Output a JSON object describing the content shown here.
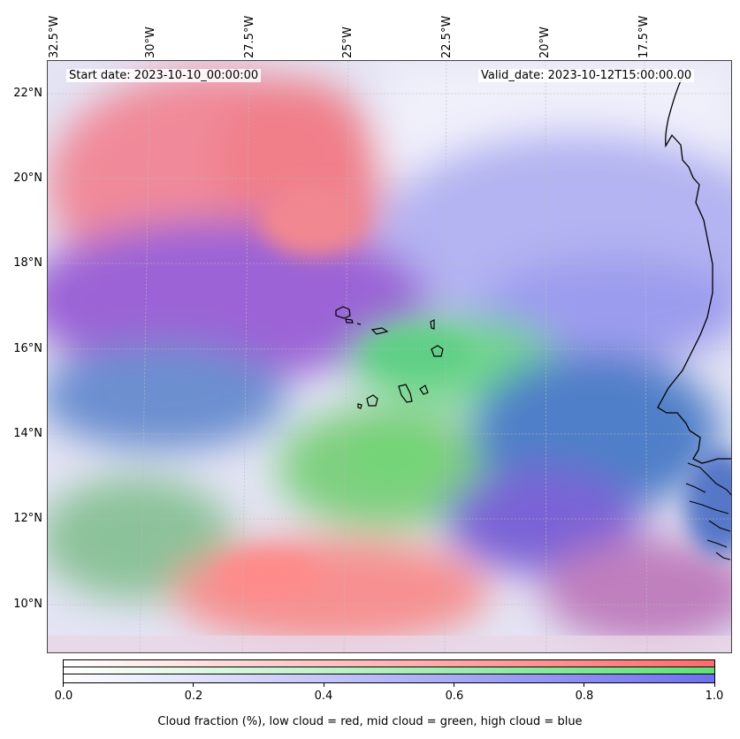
{
  "header": {
    "start_date": "Start date: 2023-10-10_00:00:00",
    "valid_date": "Valid_date: 2023-10-12T15:00:00.00"
  },
  "map": {
    "lon_labels": [
      "32.5°W",
      "30°W",
      "27.5°W",
      "25°W",
      "22.5°W",
      "20°W",
      "17.5°W"
    ],
    "lat_labels": [
      "22°N",
      "20°N",
      "18°N",
      "16°N",
      "14°N",
      "12°N",
      "10°N"
    ],
    "colors": {
      "low_cloud": "#ff6b6b",
      "mid_cloud": "#5fe07a",
      "high_cloud": "#6f6ff0",
      "coastline": "#000000"
    }
  },
  "colorbar": {
    "ticks": [
      "0.0",
      "0.2",
      "0.4",
      "0.6",
      "0.8",
      "1.0"
    ],
    "label": "Cloud fraction (%), low cloud = red, mid cloud = green, high cloud = blue"
  }
}
